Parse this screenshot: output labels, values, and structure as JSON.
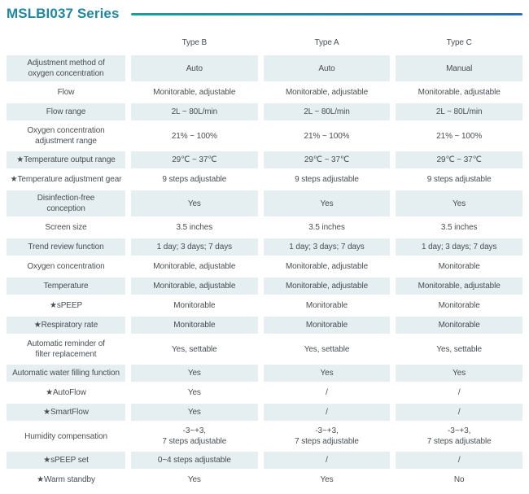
{
  "page": {
    "title": "MSLBI037 Series",
    "title_color": "#1f87a1",
    "accent_teal": "#15a09a",
    "accent_blue": "#2b6fb8"
  },
  "table": {
    "highlight_color": "#e5eef1",
    "column_headers": [
      "Type B",
      "Type A",
      "Type C"
    ],
    "rows": [
      {
        "label": "Adjustment method of\noxygen concentration",
        "type_b": "Auto",
        "type_a": "Auto",
        "type_c": "Manual"
      },
      {
        "label": "Flow",
        "type_b": "Monitorable, adjustable",
        "type_a": "Monitorable, adjustable",
        "type_c": "Monitorable, adjustable"
      },
      {
        "label": "Flow range",
        "type_b": "2L ~ 80L/min",
        "type_a": "2L ~ 80L/min",
        "type_c": "2L ~ 80L/min"
      },
      {
        "label": "Oxygen concentration\nadjustment range",
        "type_b": "21% ~ 100%",
        "type_a": "21% ~ 100%",
        "type_c": "21% ~ 100%"
      },
      {
        "label": "★Temperature output range",
        "type_b": "29℃ ~ 37℃",
        "type_a": "29℃ ~ 37℃",
        "type_c": "29℃ ~ 37℃"
      },
      {
        "label": "★Temperature adjustment gear",
        "type_b": "9 steps adjustable",
        "type_a": "9 steps adjustable",
        "type_c": "9 steps adjustable"
      },
      {
        "label": "Disinfection-free\nconception",
        "type_b": "Yes",
        "type_a": "Yes",
        "type_c": "Yes"
      },
      {
        "label": "Screen size",
        "type_b": "3.5 inches",
        "type_a": "3.5 inches",
        "type_c": "3.5 inches"
      },
      {
        "label": "Trend review function",
        "type_b": "1 day; 3 days; 7 days",
        "type_a": "1 day; 3 days; 7 days",
        "type_c": "1 day; 3 days; 7 days"
      },
      {
        "label": "Oxygen concentration",
        "type_b": "Monitorable, adjustable",
        "type_a": "Monitorable, adjustable",
        "type_c": "Monitorable"
      },
      {
        "label": "Temperature",
        "type_b": "Monitorable, adjustable",
        "type_a": "Monitorable, adjustable",
        "type_c": "Monitorable, adjustable"
      },
      {
        "label": "★sPEEP",
        "type_b": "Monitorable",
        "type_a": "Monitorable",
        "type_c": "Monitorable"
      },
      {
        "label": "★Respiratory rate",
        "type_b": "Monitorable",
        "type_a": "Monitorable",
        "type_c": "Monitorable"
      },
      {
        "label": "Automatic reminder of\nfilter replacement",
        "type_b": "Yes, settable",
        "type_a": "Yes, settable",
        "type_c": "Yes, settable"
      },
      {
        "label": "Automatic water filling function",
        "type_b": "Yes",
        "type_a": "Yes",
        "type_c": "Yes"
      },
      {
        "label": "★AutoFlow",
        "type_b": "Yes",
        "type_a": "/",
        "type_c": "/"
      },
      {
        "label": "★SmartFlow",
        "type_b": "Yes",
        "type_a": "/",
        "type_c": "/"
      },
      {
        "label": "Humidity compensation",
        "type_b": "-3~+3,\n7 steps adjustable",
        "type_a": "-3~+3,\n7 steps adjustable",
        "type_c": "-3~+3,\n7 steps adjustable"
      },
      {
        "label": "★sPEEP set",
        "type_b": "0~4 steps adjustable",
        "type_a": "/",
        "type_c": "/"
      },
      {
        "label": "★Warm standby",
        "type_b": "Yes",
        "type_a": "Yes",
        "type_c": "No"
      }
    ]
  }
}
